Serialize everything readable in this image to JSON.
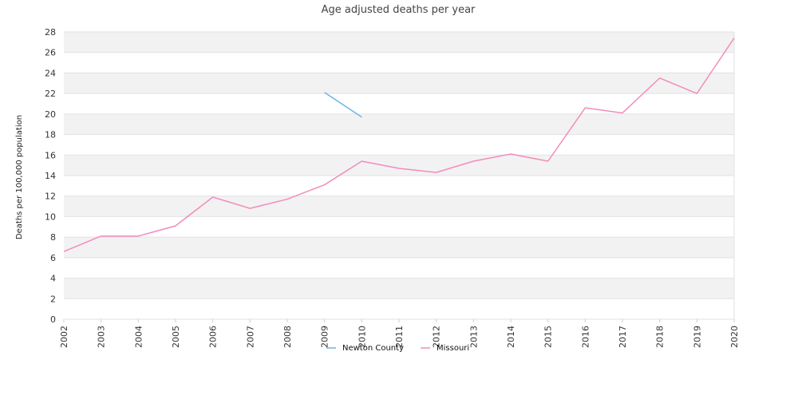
{
  "chart_data": {
    "type": "line",
    "title": "Age adjusted deaths per year",
    "ylabel": "Deaths per 100,000 population",
    "xlabel": "",
    "ylim": [
      0,
      28
    ],
    "yticks": [
      0,
      2,
      4,
      6,
      8,
      10,
      12,
      14,
      16,
      18,
      20,
      22,
      24,
      26,
      28
    ],
    "x": [
      "2002",
      "2003",
      "2004",
      "2005",
      "2006",
      "2007",
      "2008",
      "2009",
      "2010",
      "2011",
      "2012",
      "2013",
      "2014",
      "2015",
      "2016",
      "2017",
      "2018",
      "2019",
      "2020"
    ],
    "x_tick_labels": [
      "2002",
      "2003",
      "2004",
      "2005",
      "2006",
      "2007",
      "2008",
      "2009",
      "2010",
      "2011",
      "2012",
      "2013",
      "2014",
      "2015",
      "2016",
      "2017",
      "2018",
      "2019",
      "2020"
    ],
    "grid": true,
    "legend_position": "bottom",
    "series": [
      {
        "name": "Newton County",
        "color": "#6cb4e4",
        "values": [
          null,
          null,
          null,
          null,
          null,
          null,
          null,
          22.1,
          19.7,
          null,
          null,
          null,
          null,
          null,
          null,
          null,
          null,
          null,
          null
        ]
      },
      {
        "name": "Missouri",
        "color": "#f28cbc",
        "values": [
          6.6,
          8.1,
          8.1,
          9.1,
          11.9,
          10.8,
          11.7,
          13.1,
          15.4,
          14.7,
          14.3,
          15.4,
          16.1,
          15.4,
          20.6,
          20.1,
          23.5,
          22.0,
          27.4
        ]
      }
    ]
  }
}
